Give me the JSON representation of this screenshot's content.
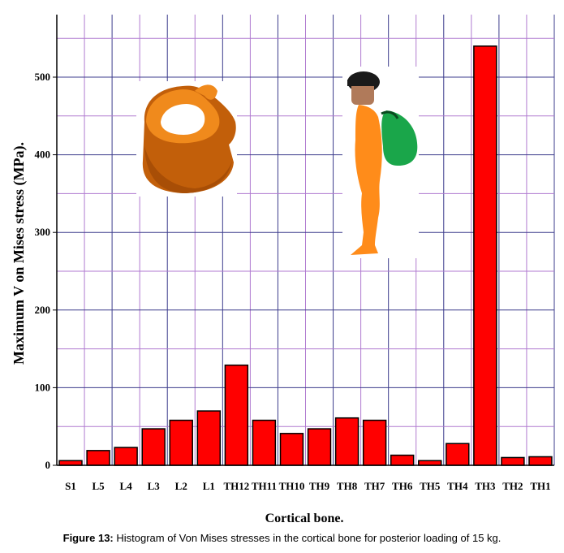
{
  "chart_data": {
    "type": "bar",
    "xlabel": "Cortical bone.",
    "ylabel": "Maximum V on Mises stress (MPa).",
    "categories": [
      "S1",
      "L5",
      "L4",
      "L3",
      "L2",
      "L1",
      "TH12",
      "TH11",
      "TH10",
      "TH9",
      "TH8",
      "TH7",
      "TH6",
      "TH5",
      "TH4",
      "TH3",
      "TH2",
      "TH1"
    ],
    "values": [
      6,
      19,
      23,
      47,
      58,
      70,
      129,
      58,
      41,
      47,
      61,
      58,
      13,
      6,
      28,
      540,
      10,
      11
    ],
    "ylim": [
      0,
      560
    ],
    "yticks": [
      0,
      100,
      200,
      300,
      400,
      500
    ],
    "grid": true,
    "colors": {
      "bar": "#ff0000",
      "bar_edge": "#000000",
      "grid_major": "#3c3c8c",
      "grid_minor": "#b07ad0"
    }
  },
  "illustrations": {
    "vertebra": "orange-vertebra-model",
    "person": "person-with-backpack"
  },
  "caption": {
    "label": "Figure 13:",
    "text": " Histogram of Von Mises stresses in the cortical bone for posterior loading of 15 kg."
  }
}
